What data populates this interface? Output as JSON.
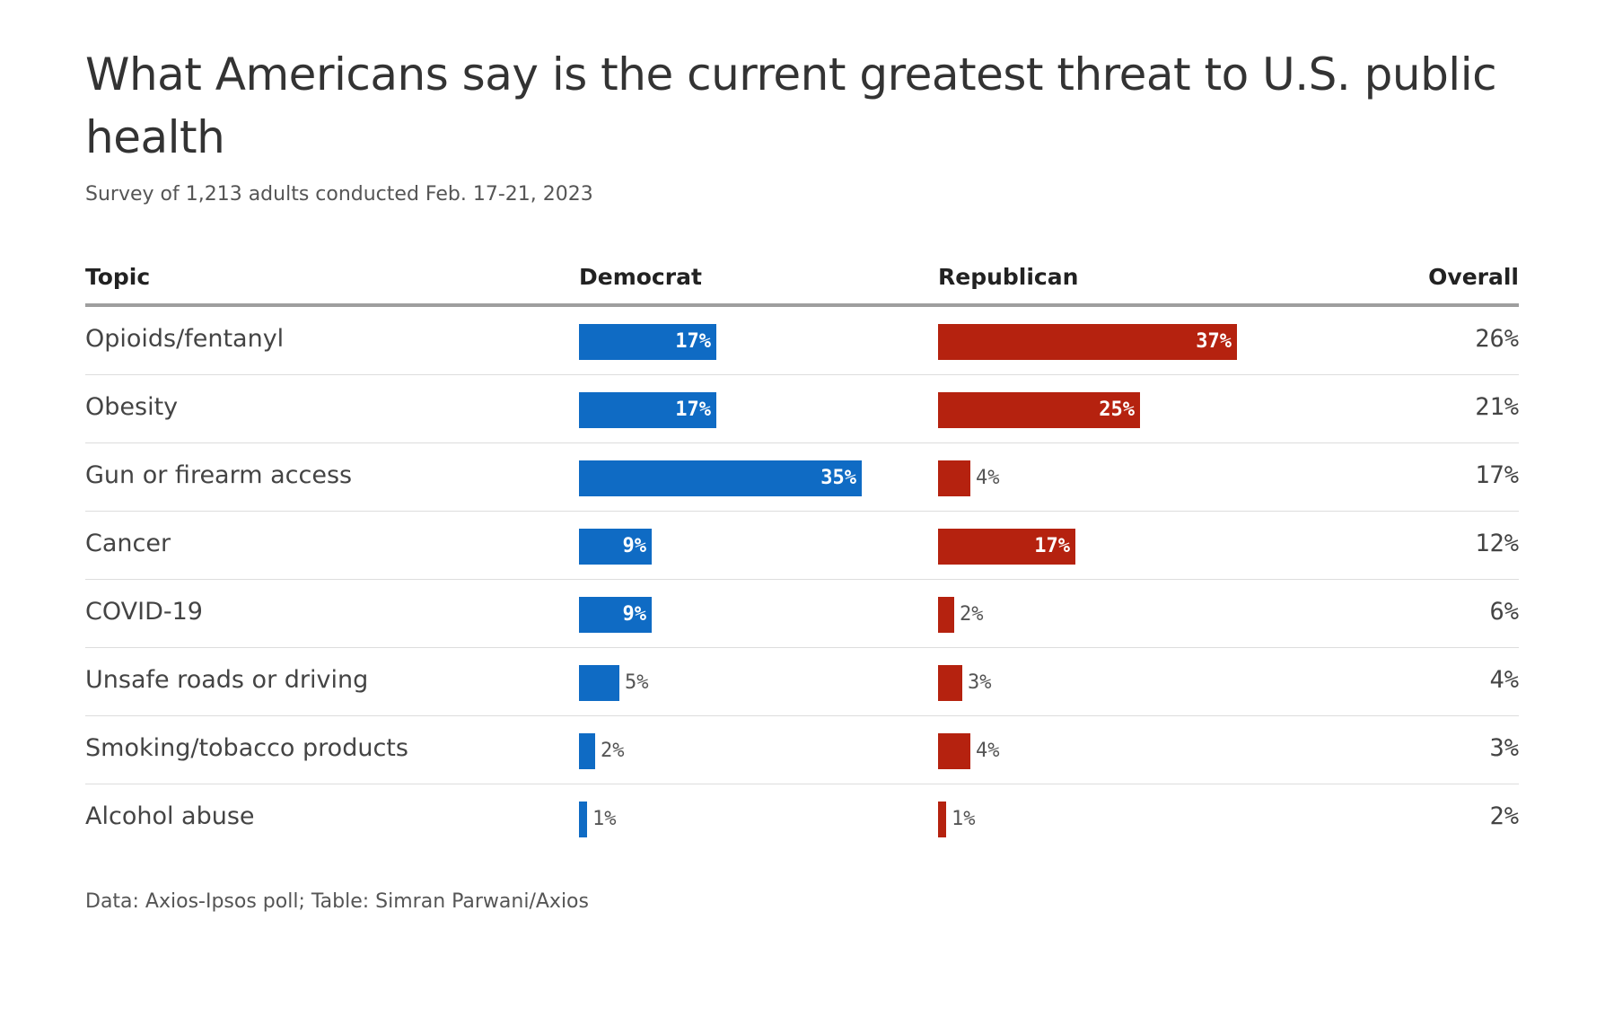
{
  "title": "What Americans say is the current greatest threat to U.S. public health",
  "subtitle": "Survey of 1,213 adults conducted Feb. 17-21, 2023",
  "headers": {
    "topic": "Topic",
    "democrat": "Democrat",
    "republican": "Republican",
    "overall": "Overall"
  },
  "footer": "Data: Axios-Ipsos poll; Table: Simran Parwani/Axios",
  "colors": {
    "democrat": "#0f6bc4",
    "republican": "#b5220f"
  },
  "chart_data": {
    "type": "table",
    "columns": [
      "Topic",
      "Democrat",
      "Republican",
      "Overall"
    ],
    "rows": [
      {
        "topic": "Opioids/fentanyl",
        "democrat": 17,
        "republican": 37,
        "overall": 26
      },
      {
        "topic": "Obesity",
        "democrat": 17,
        "republican": 25,
        "overall": 21
      },
      {
        "topic": "Gun or firearm access",
        "democrat": 35,
        "republican": 4,
        "overall": 17
      },
      {
        "topic": "Cancer",
        "democrat": 9,
        "republican": 17,
        "overall": 12
      },
      {
        "topic": "COVID-19",
        "democrat": 9,
        "republican": 2,
        "overall": 6
      },
      {
        "topic": "Unsafe roads or driving",
        "democrat": 5,
        "republican": 3,
        "overall": 4
      },
      {
        "topic": "Smoking/tobacco products",
        "democrat": 2,
        "republican": 4,
        "overall": 3
      },
      {
        "topic": "Alcohol abuse",
        "democrat": 1,
        "republican": 1,
        "overall": 2
      }
    ],
    "unit": "%"
  }
}
